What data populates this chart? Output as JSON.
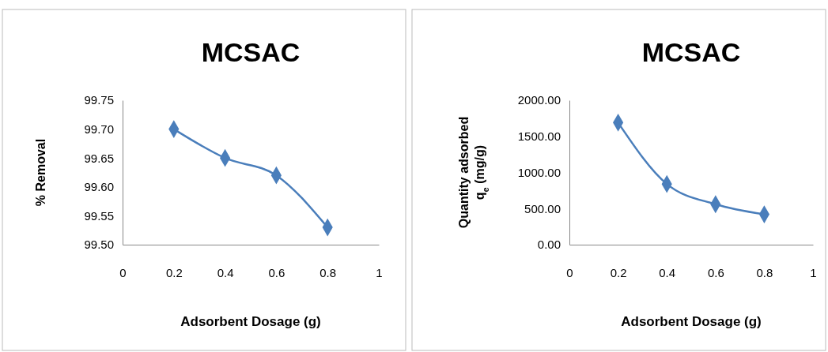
{
  "chart_data": [
    {
      "type": "line",
      "title": "MCSAC",
      "xlabel": "Adsorbent Dosage (g)",
      "ylabel": "% Removal",
      "marker": "diamond",
      "grid": false,
      "x": [
        0.2,
        0.4,
        0.6,
        0.8
      ],
      "series": [
        {
          "color": "#4a7ebb",
          "values": [
            99.7,
            99.65,
            99.62,
            99.53
          ]
        }
      ],
      "xlim": [
        0,
        1
      ],
      "xticks": [
        0,
        0.2,
        0.4,
        0.6,
        0.8,
        1
      ],
      "ylim": [
        99.5,
        99.75
      ],
      "yticks": [
        {
          "value": 99.5,
          "label": "99.50"
        },
        {
          "value": 99.55,
          "label": "99.55"
        },
        {
          "value": 99.6,
          "label": "99.60"
        },
        {
          "value": 99.65,
          "label": "99.65"
        },
        {
          "value": 99.7,
          "label": "99.70"
        },
        {
          "value": 99.75,
          "label": "99.75"
        }
      ]
    },
    {
      "type": "line",
      "title": "MCSAC",
      "xlabel": "Adsorbent Dosage (g)",
      "ylabel": "Quantity  adsorbed\nq$_{e}$ (mg/g)",
      "marker": "diamond",
      "grid": false,
      "x": [
        0.2,
        0.4,
        0.6,
        0.8
      ],
      "series": [
        {
          "color": "#4a7ebb",
          "values": [
            1690,
            840,
            560,
            420
          ]
        }
      ],
      "xlim": [
        0,
        1
      ],
      "xticks": [
        0,
        0.2,
        0.4,
        0.6,
        0.8,
        1
      ],
      "ylim": [
        0,
        2000
      ],
      "yticks": [
        {
          "value": 0,
          "label": "0.00"
        },
        {
          "value": 500,
          "label": "500.00"
        },
        {
          "value": 1000,
          "label": "1000.00"
        },
        {
          "value": 1500,
          "label": "1500.00"
        },
        {
          "value": 2000,
          "label": "2000.00"
        }
      ]
    }
  ]
}
